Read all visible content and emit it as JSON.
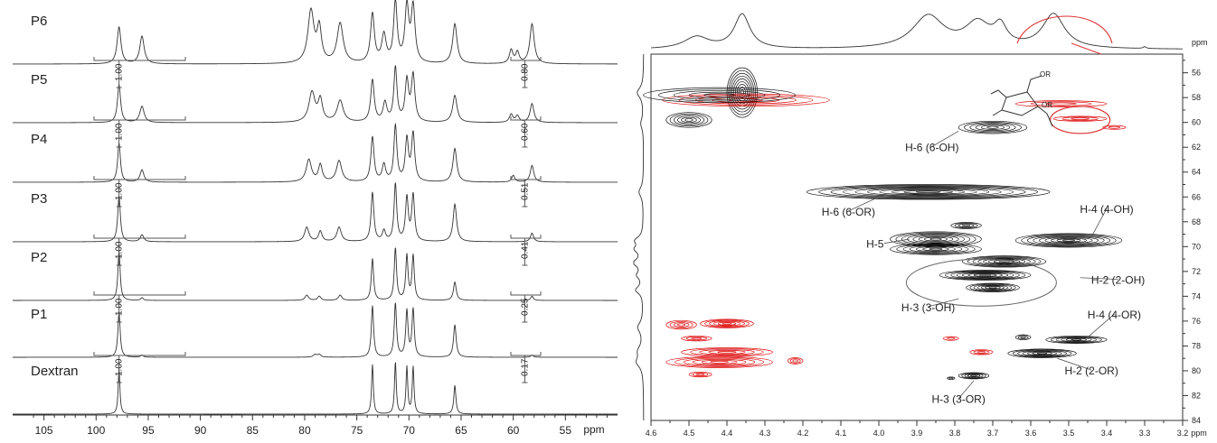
{
  "chart_data": [
    {
      "type": "line",
      "panel": "1D 13C NMR spectra (stacked)",
      "xlabel": "ppm",
      "xlim": [
        108,
        50
      ],
      "x_reversed": true,
      "xticks": [
        105,
        100,
        95,
        90,
        85,
        80,
        75,
        70,
        65,
        60,
        55
      ],
      "series": [
        {
          "name": "P6",
          "peaks": [
            {
              "ppm": 97.8,
              "h": 0.6,
              "w": 0.22
            },
            {
              "ppm": 95.6,
              "h": 0.45,
              "w": 0.25
            },
            {
              "ppm": 79.4,
              "h": 0.85,
              "w": 0.35
            },
            {
              "ppm": 78.6,
              "h": 0.55,
              "w": 0.25
            },
            {
              "ppm": 76.6,
              "h": 0.65,
              "w": 0.35
            },
            {
              "ppm": 73.5,
              "h": 0.8,
              "w": 0.22
            },
            {
              "ppm": 72.4,
              "h": 0.45,
              "w": 0.25
            },
            {
              "ppm": 71.3,
              "h": 1.0,
              "w": 0.2
            },
            {
              "ppm": 70.2,
              "h": 0.9,
              "w": 0.22
            },
            {
              "ppm": 69.6,
              "h": 0.9,
              "w": 0.22
            },
            {
              "ppm": 65.6,
              "h": 0.65,
              "w": 0.25
            },
            {
              "ppm": 60.2,
              "h": 0.22,
              "w": 0.2
            },
            {
              "ppm": 59.6,
              "h": 0.18,
              "w": 0.2
            },
            {
              "ppm": 58.2,
              "h": 0.65,
              "w": 0.25
            }
          ]
        },
        {
          "name": "P5",
          "peaks": [
            {
              "ppm": 97.8,
              "h": 0.7,
              "w": 0.18
            },
            {
              "ppm": 95.6,
              "h": 0.3,
              "w": 0.25
            },
            {
              "ppm": 79.3,
              "h": 0.55,
              "w": 0.35
            },
            {
              "ppm": 78.5,
              "h": 0.4,
              "w": 0.25
            },
            {
              "ppm": 76.6,
              "h": 0.4,
              "w": 0.35
            },
            {
              "ppm": 73.5,
              "h": 0.78,
              "w": 0.2
            },
            {
              "ppm": 72.3,
              "h": 0.35,
              "w": 0.22
            },
            {
              "ppm": 71.3,
              "h": 1.0,
              "w": 0.18
            },
            {
              "ppm": 70.2,
              "h": 0.75,
              "w": 0.2
            },
            {
              "ppm": 69.6,
              "h": 0.85,
              "w": 0.2
            },
            {
              "ppm": 65.6,
              "h": 0.5,
              "w": 0.25
            },
            {
              "ppm": 60.2,
              "h": 0.15,
              "w": 0.2
            },
            {
              "ppm": 59.6,
              "h": 0.12,
              "w": 0.2
            },
            {
              "ppm": 58.2,
              "h": 0.35,
              "w": 0.22
            }
          ]
        },
        {
          "name": "P4",
          "peaks": [
            {
              "ppm": 97.8,
              "h": 0.7,
              "w": 0.16
            },
            {
              "ppm": 95.6,
              "h": 0.22,
              "w": 0.22
            },
            {
              "ppm": 79.6,
              "h": 0.4,
              "w": 0.3
            },
            {
              "ppm": 78.5,
              "h": 0.3,
              "w": 0.22
            },
            {
              "ppm": 76.7,
              "h": 0.38,
              "w": 0.3
            },
            {
              "ppm": 73.5,
              "h": 0.8,
              "w": 0.18
            },
            {
              "ppm": 72.4,
              "h": 0.3,
              "w": 0.2
            },
            {
              "ppm": 71.3,
              "h": 1.0,
              "w": 0.17
            },
            {
              "ppm": 70.2,
              "h": 0.75,
              "w": 0.18
            },
            {
              "ppm": 69.6,
              "h": 0.85,
              "w": 0.18
            },
            {
              "ppm": 65.6,
              "h": 0.6,
              "w": 0.22
            },
            {
              "ppm": 60.0,
              "h": 0.12,
              "w": 0.18
            },
            {
              "ppm": 58.2,
              "h": 0.3,
              "w": 0.2
            }
          ]
        },
        {
          "name": "P3",
          "peaks": [
            {
              "ppm": 97.8,
              "h": 0.8,
              "w": 0.15
            },
            {
              "ppm": 95.6,
              "h": 0.12,
              "w": 0.2
            },
            {
              "ppm": 79.8,
              "h": 0.25,
              "w": 0.25
            },
            {
              "ppm": 78.5,
              "h": 0.18,
              "w": 0.2
            },
            {
              "ppm": 76.7,
              "h": 0.25,
              "w": 0.25
            },
            {
              "ppm": 73.5,
              "h": 0.85,
              "w": 0.16
            },
            {
              "ppm": 72.4,
              "h": 0.18,
              "w": 0.18
            },
            {
              "ppm": 71.3,
              "h": 1.0,
              "w": 0.15
            },
            {
              "ppm": 70.2,
              "h": 0.75,
              "w": 0.16
            },
            {
              "ppm": 69.6,
              "h": 0.8,
              "w": 0.16
            },
            {
              "ppm": 65.6,
              "h": 0.65,
              "w": 0.2
            },
            {
              "ppm": 58.2,
              "h": 0.15,
              "w": 0.18
            }
          ]
        },
        {
          "name": "P2",
          "peaks": [
            {
              "ppm": 97.8,
              "h": 0.95,
              "w": 0.13
            },
            {
              "ppm": 95.6,
              "h": 0.05,
              "w": 0.15
            },
            {
              "ppm": 79.8,
              "h": 0.1,
              "w": 0.2
            },
            {
              "ppm": 78.6,
              "h": 0.08,
              "w": 0.18
            },
            {
              "ppm": 76.6,
              "h": 0.1,
              "w": 0.2
            },
            {
              "ppm": 73.5,
              "h": 0.8,
              "w": 0.13
            },
            {
              "ppm": 71.3,
              "h": 1.0,
              "w": 0.13
            },
            {
              "ppm": 70.2,
              "h": 0.85,
              "w": 0.13
            },
            {
              "ppm": 69.6,
              "h": 0.85,
              "w": 0.13
            },
            {
              "ppm": 65.6,
              "h": 0.35,
              "w": 0.16
            },
            {
              "ppm": 58.2,
              "h": 0.08,
              "w": 0.15
            }
          ]
        },
        {
          "name": "P1",
          "peaks": [
            {
              "ppm": 97.8,
              "h": 0.85,
              "w": 0.13
            },
            {
              "ppm": 95.6,
              "h": 0.04,
              "w": 0.15
            },
            {
              "ppm": 79.0,
              "h": 0.05,
              "w": 0.2
            },
            {
              "ppm": 78.6,
              "h": 0.05,
              "w": 0.18
            },
            {
              "ppm": 73.5,
              "h": 0.95,
              "w": 0.13
            },
            {
              "ppm": 71.3,
              "h": 1.0,
              "w": 0.13
            },
            {
              "ppm": 70.2,
              "h": 0.85,
              "w": 0.13
            },
            {
              "ppm": 69.6,
              "h": 0.88,
              "w": 0.13
            },
            {
              "ppm": 65.6,
              "h": 0.6,
              "w": 0.15
            },
            {
              "ppm": 58.2,
              "h": 0.04,
              "w": 0.15
            }
          ]
        },
        {
          "name": "Dextran",
          "peaks": [
            {
              "ppm": 97.8,
              "h": 0.88,
              "w": 0.1
            },
            {
              "ppm": 73.5,
              "h": 0.95,
              "w": 0.1
            },
            {
              "ppm": 71.3,
              "h": 1.0,
              "w": 0.1
            },
            {
              "ppm": 70.2,
              "h": 0.9,
              "w": 0.1
            },
            {
              "ppm": 69.6,
              "h": 0.9,
              "w": 0.1
            },
            {
              "ppm": 65.6,
              "h": 0.55,
              "w": 0.12
            }
          ]
        }
      ],
      "integrals": [
        {
          "series": "P5",
          "anomeric": "1.00",
          "ring": "0.80"
        },
        {
          "series": "P4",
          "anomeric": "1.00",
          "ring": "0.60"
        },
        {
          "series": "P3",
          "anomeric": "1.00",
          "ring": "0.51"
        },
        {
          "series": "P2",
          "anomeric": "1.00",
          "ring": "0.41"
        },
        {
          "series": "P1",
          "anomeric": "1.00",
          "ring": "0.25"
        },
        {
          "series": "Dextran",
          "anomeric": "1.00",
          "ring": "0.17"
        }
      ]
    },
    {
      "type": "heatmap",
      "panel": "2D HSQC contour plot",
      "xlabel": "ppm",
      "ylabel": "ppm",
      "xlim": [
        4.6,
        3.2
      ],
      "ylim": [
        54.5,
        84
      ],
      "xticks": [
        4.6,
        4.5,
        4.4,
        4.3,
        4.2,
        4.1,
        4.0,
        3.9,
        3.8,
        3.7,
        3.6,
        3.5,
        3.4,
        3.3,
        3.2
      ],
      "yticks": [
        56,
        58,
        60,
        62,
        64,
        66,
        68,
        70,
        72,
        74,
        76,
        78,
        80,
        82,
        84
      ],
      "top_projection": [
        {
          "x": 4.48,
          "h": 0.35,
          "w": 0.04
        },
        {
          "x": 4.36,
          "h": 1.0,
          "w": 0.025
        },
        {
          "x": 3.87,
          "h": 0.95,
          "w": 0.05
        },
        {
          "x": 3.74,
          "h": 0.7,
          "w": 0.04
        },
        {
          "x": 3.68,
          "h": 0.55,
          "w": 0.02
        },
        {
          "x": 3.54,
          "h": 1.0,
          "w": 0.035
        },
        {
          "x": 3.3,
          "h": 0.05,
          "w": 0.005
        }
      ],
      "left_projection": [
        {
          "y": 57.6,
          "h": 0.7,
          "w": 0.5
        },
        {
          "y": 60.1,
          "h": 0.3,
          "w": 0.5
        },
        {
          "y": 65.6,
          "h": 0.5,
          "w": 0.5
        },
        {
          "y": 69.5,
          "h": 0.8,
          "w": 0.35
        },
        {
          "y": 70.2,
          "h": 0.8,
          "w": 0.35
        },
        {
          "y": 71.3,
          "h": 1.0,
          "w": 0.35
        },
        {
          "y": 72.3,
          "h": 0.6,
          "w": 0.35
        },
        {
          "y": 73.5,
          "h": 0.8,
          "w": 0.35
        },
        {
          "y": 76.5,
          "h": 0.6,
          "w": 0.5
        },
        {
          "y": 78.4,
          "h": 0.5,
          "w": 0.5
        },
        {
          "y": 79.3,
          "h": 0.7,
          "w": 0.5
        }
      ],
      "cross_peaks": [
        {
          "x": 4.36,
          "y": 57.6,
          "wx": 0.04,
          "wy": 2.0,
          "n": 9,
          "color": "#111111"
        },
        {
          "x": 4.35,
          "y": 58.2,
          "wx": 0.22,
          "wy": 0.5,
          "n": 5,
          "color": "#dd0000"
        },
        {
          "x": 4.42,
          "y": 57.8,
          "wx": 0.2,
          "wy": 0.6,
          "n": 5,
          "color": "#111111"
        },
        {
          "x": 4.5,
          "y": 59.8,
          "wx": 0.06,
          "wy": 0.6,
          "n": 6,
          "color": "#111111"
        },
        {
          "x": 3.7,
          "y": 60.4,
          "wx": 0.09,
          "wy": 0.5,
          "n": 6,
          "color": "#111111"
        },
        {
          "x": 3.52,
          "y": 58.5,
          "wx": 0.12,
          "wy": 0.25,
          "n": 3,
          "color": "#dd0000"
        },
        {
          "x": 3.47,
          "y": 59.7,
          "wx": 0.07,
          "wy": 0.2,
          "n": 3,
          "color": "#dd0000"
        },
        {
          "x": 3.38,
          "y": 60.4,
          "wx": 0.03,
          "wy": 0.15,
          "n": 2,
          "color": "#dd0000"
        },
        {
          "x": 3.87,
          "y": 65.6,
          "wx": 0.32,
          "wy": 0.6,
          "n": 10,
          "color": "#111111"
        },
        {
          "x": 3.85,
          "y": 69.4,
          "wx": 0.12,
          "wy": 0.6,
          "n": 8,
          "color": "#111111"
        },
        {
          "x": 3.85,
          "y": 70.2,
          "wx": 0.12,
          "wy": 0.45,
          "n": 7,
          "color": "#111111"
        },
        {
          "x": 3.5,
          "y": 69.5,
          "wx": 0.14,
          "wy": 0.55,
          "n": 9,
          "color": "#111111"
        },
        {
          "x": 3.67,
          "y": 71.2,
          "wx": 0.11,
          "wy": 0.45,
          "n": 8,
          "color": "#111111"
        },
        {
          "x": 3.72,
          "y": 72.3,
          "wx": 0.12,
          "wy": 0.4,
          "n": 8,
          "color": "#111111"
        },
        {
          "x": 3.7,
          "y": 73.3,
          "wx": 0.07,
          "wy": 0.35,
          "n": 7,
          "color": "#111111"
        },
        {
          "x": 3.77,
          "y": 68.3,
          "wx": 0.04,
          "wy": 0.25,
          "n": 4,
          "color": "#111111"
        },
        {
          "x": 3.62,
          "y": 77.3,
          "wx": 0.02,
          "wy": 0.2,
          "n": 3,
          "color": "#111111"
        },
        {
          "x": 3.48,
          "y": 77.5,
          "wx": 0.08,
          "wy": 0.3,
          "n": 6,
          "color": "#111111"
        },
        {
          "x": 3.57,
          "y": 78.6,
          "wx": 0.09,
          "wy": 0.35,
          "n": 7,
          "color": "#111111"
        },
        {
          "x": 3.75,
          "y": 80.4,
          "wx": 0.04,
          "wy": 0.25,
          "n": 5,
          "color": "#111111"
        },
        {
          "x": 3.81,
          "y": 80.6,
          "wx": 0.01,
          "wy": 0.1,
          "n": 2,
          "color": "#111111"
        },
        {
          "x": 4.4,
          "y": 76.2,
          "wx": 0.07,
          "wy": 0.35,
          "n": 6,
          "color": "#dd0000"
        },
        {
          "x": 4.52,
          "y": 76.3,
          "wx": 0.04,
          "wy": 0.35,
          "n": 4,
          "color": "#dd0000"
        },
        {
          "x": 4.48,
          "y": 77.4,
          "wx": 0.04,
          "wy": 0.2,
          "n": 3,
          "color": "#dd0000"
        },
        {
          "x": 4.4,
          "y": 78.5,
          "wx": 0.12,
          "wy": 0.35,
          "n": 5,
          "color": "#dd0000"
        },
        {
          "x": 4.42,
          "y": 79.3,
          "wx": 0.14,
          "wy": 0.45,
          "n": 6,
          "color": "#dd0000"
        },
        {
          "x": 4.47,
          "y": 80.3,
          "wx": 0.03,
          "wy": 0.2,
          "n": 3,
          "color": "#dd0000"
        },
        {
          "x": 4.22,
          "y": 79.2,
          "wx": 0.02,
          "wy": 0.25,
          "n": 3,
          "color": "#dd0000"
        },
        {
          "x": 3.81,
          "y": 77.4,
          "wx": 0.02,
          "wy": 0.15,
          "n": 2,
          "color": "#dd0000"
        },
        {
          "x": 3.73,
          "y": 78.5,
          "wx": 0.03,
          "wy": 0.2,
          "n": 3,
          "color": "#dd0000"
        }
      ],
      "annotations": [
        {
          "text": "H-6 (6-OH)",
          "x": 3.86,
          "y": 62.3
        },
        {
          "text": "H-6 (6-OR)",
          "x": 4.08,
          "y": 67.5
        },
        {
          "text": "H-4 (4-OH)",
          "x": 3.4,
          "y": 67.3
        },
        {
          "text": "H-5",
          "x": 4.01,
          "y": 70.1
        },
        {
          "text": "H-2 (2-OH)",
          "x": 3.37,
          "y": 73.0
        },
        {
          "text": "H-3 (3-OH)",
          "x": 3.87,
          "y": 75.2
        },
        {
          "text": "H-4 (4-OR)",
          "x": 3.38,
          "y": 75.8
        },
        {
          "text": "H-2 (2-OR)",
          "x": 3.44,
          "y": 80.3
        },
        {
          "text": "H-3 (3-OR)",
          "x": 3.79,
          "y": 82.6
        }
      ],
      "structure_labels": [
        "OR",
        "OR"
      ]
    }
  ],
  "colors": {
    "contour_black": "#111111",
    "contour_red": "#dd0000",
    "circle_red": "#dd3333",
    "axis": "#333333"
  }
}
